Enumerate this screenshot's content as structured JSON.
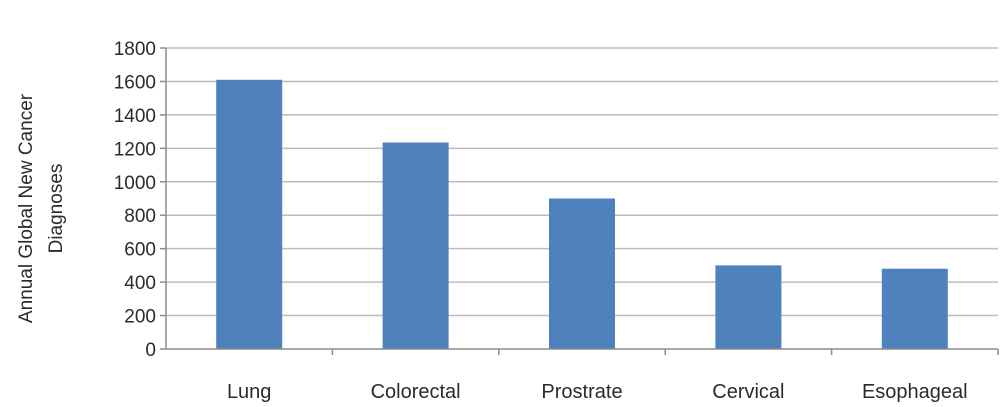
{
  "chart_data": {
    "type": "bar",
    "categories": [
      "Lung",
      "Colorectal",
      "Prostrate",
      "Cervical",
      "Esophageal"
    ],
    "values": [
      1610,
      1235,
      900,
      500,
      480
    ],
    "title": "",
    "xlabel": "",
    "ylabel_lines": [
      "Annual Global New Cancer",
      "Diagnoses"
    ],
    "ylim": [
      0,
      1800
    ],
    "yticks": [
      0,
      200,
      400,
      600,
      800,
      1000,
      1200,
      1400,
      1600,
      1800
    ],
    "grid": true,
    "legend": "none",
    "bar_color": "#4f81bd",
    "grid_color": "#bdbdbd",
    "axis_color": "#8c8c8c"
  }
}
